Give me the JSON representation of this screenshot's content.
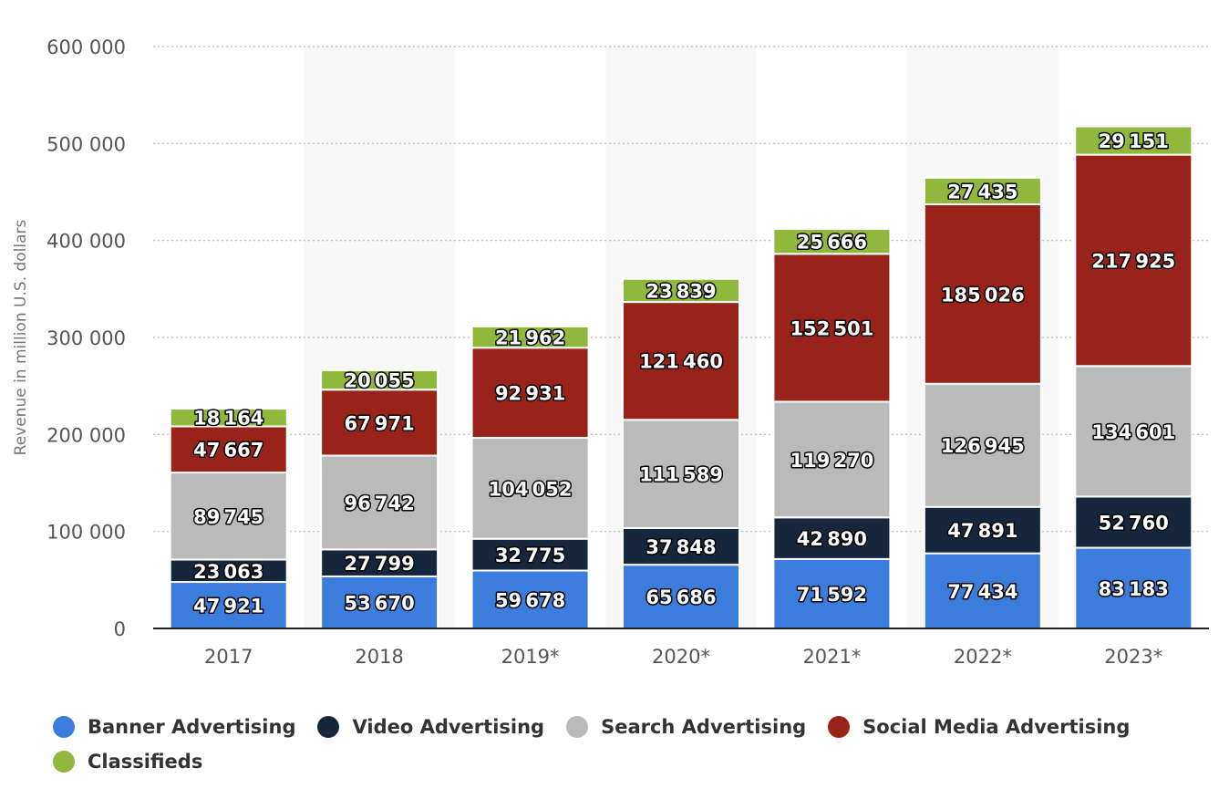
{
  "chart_data": {
    "type": "bar",
    "stacked": true,
    "categories": [
      "2017",
      "2018",
      "2019*",
      "2020*",
      "2021*",
      "2022*",
      "2023*"
    ],
    "series": [
      {
        "name": "Banner Advertising",
        "color": "#3b7ddd",
        "values": [
          47921,
          53670,
          59678,
          65686,
          71592,
          77434,
          83183
        ]
      },
      {
        "name": "Video Advertising",
        "color": "#16273d",
        "values": [
          23063,
          27799,
          32775,
          37848,
          42890,
          47891,
          52760
        ]
      },
      {
        "name": "Search Advertising",
        "color": "#bababa",
        "values": [
          89745,
          96742,
          104052,
          111589,
          119270,
          126945,
          134601
        ]
      },
      {
        "name": "Social Media Advertising",
        "color": "#992219",
        "values": [
          47667,
          67971,
          92931,
          121460,
          152501,
          185026,
          217925
        ]
      },
      {
        "name": "Classifieds",
        "color": "#8fb83c",
        "values": [
          18164,
          20055,
          21962,
          23839,
          25666,
          27435,
          29151
        ]
      }
    ],
    "ylabel": "Revenue in million U.S. dollars",
    "xlabel": "",
    "ylim": [
      0,
      600000
    ],
    "yticks": [
      0,
      100000,
      200000,
      300000,
      400000,
      500000,
      600000
    ],
    "data_labels": true,
    "grid": true,
    "legend_position": "bottom"
  }
}
